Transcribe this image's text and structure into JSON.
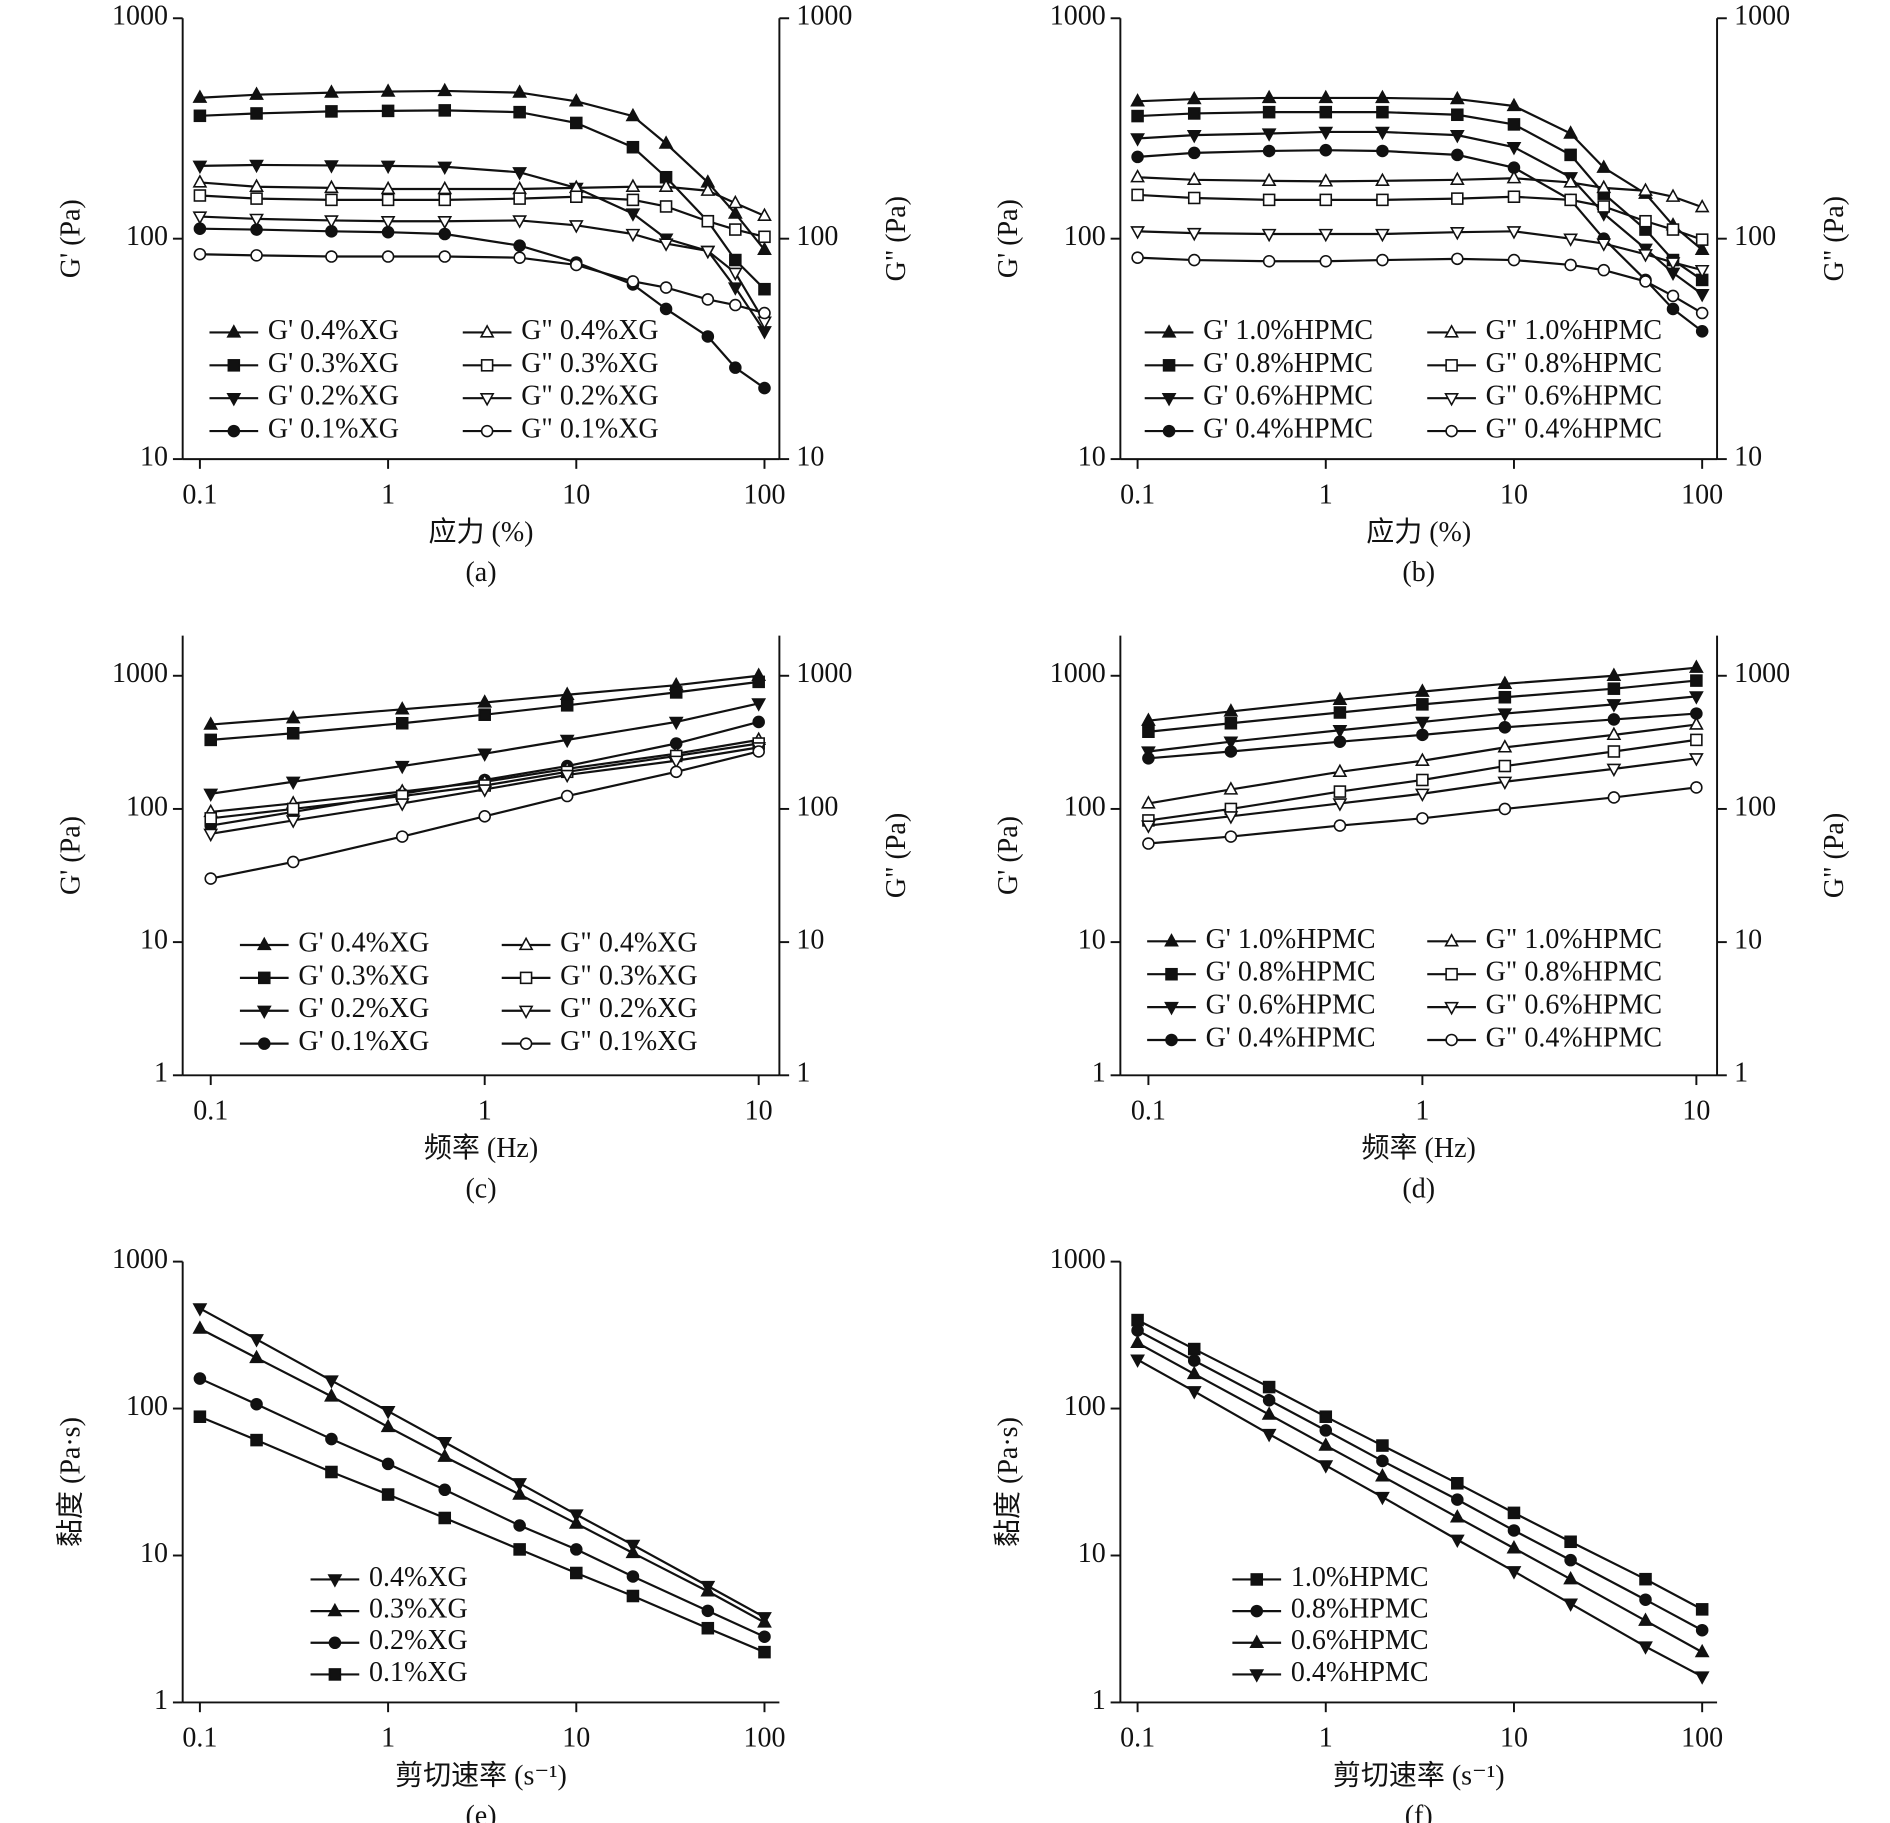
{
  "chart_data": [
    {
      "type": "line",
      "caption": "(a)",
      "x_label": "应力 (%)",
      "y_label": "G' (Pa)",
      "y2_label": "G\" (Pa)",
      "log_x": true,
      "log_y": true,
      "legend": "lower left",
      "legend_columns": 2,
      "xlim": [
        0.081,
        120
      ],
      "ylim": [
        10,
        1000
      ],
      "y2lim": [
        10,
        1000
      ],
      "xticks": [
        0.1,
        1,
        10,
        100
      ],
      "yticks": [
        10,
        100,
        1000
      ],
      "y2ticks": [
        10,
        100,
        1000
      ],
      "x": [
        0.1,
        0.2,
        0.5,
        1,
        2,
        5,
        10,
        20,
        30,
        50,
        70,
        100
      ],
      "series": [
        {
          "name": "G' 0.4%XG",
          "color": "#111111",
          "marker": "triangle-up",
          "filled": true,
          "values": [
            436,
            450,
            460,
            465,
            468,
            460,
            420,
            360,
            270,
            180,
            130,
            89
          ]
        },
        {
          "name": "G' 0.3%XG",
          "color": "#111111",
          "marker": "square",
          "filled": true,
          "values": [
            361,
            370,
            378,
            380,
            382,
            375,
            335,
            260,
            190,
            120,
            80,
            59
          ]
        },
        {
          "name": "G' 0.2%XG",
          "color": "#111111",
          "marker": "triangle-down",
          "filled": true,
          "values": [
            214,
            216,
            215,
            214,
            212,
            200,
            170,
            130,
            100,
            88,
            60,
            38
          ]
        },
        {
          "name": "G' 0.1%XG",
          "color": "#111111",
          "marker": "circle",
          "filled": true,
          "values": [
            111,
            110,
            108,
            107,
            105,
            93,
            78,
            62,
            48,
            36,
            26,
            21
          ]
        },
        {
          "name": "G\" 0.4%XG",
          "color": "#111111",
          "marker": "triangle-up",
          "filled": false,
          "values": [
            180,
            172,
            170,
            168,
            168,
            168,
            170,
            172,
            172,
            165,
            145,
            127
          ]
        },
        {
          "name": "G\" 0.3%XG",
          "color": "#111111",
          "marker": "square",
          "filled": false,
          "values": [
            157,
            152,
            150,
            150,
            150,
            152,
            155,
            150,
            140,
            120,
            110,
            102
          ]
        },
        {
          "name": "G\" 0.2%XG",
          "color": "#111111",
          "marker": "triangle-down",
          "filled": false,
          "values": [
            126,
            123,
            121,
            120,
            120,
            121,
            115,
            105,
            95,
            88,
            70,
            42
          ]
        },
        {
          "name": "G\" 0.1%XG",
          "color": "#111111",
          "marker": "circle",
          "filled": false,
          "values": [
            85,
            84,
            83,
            83,
            83,
            82,
            76,
            64,
            60,
            53,
            50,
            46
          ]
        }
      ]
    },
    {
      "type": "line",
      "caption": "(b)",
      "x_label": "应力 (%)",
      "y_label": "G' (Pa)",
      "y2_label": "G\" (Pa)",
      "log_x": true,
      "log_y": true,
      "legend": "lower left",
      "legend_columns": 2,
      "xlim": [
        0.081,
        120
      ],
      "ylim": [
        10,
        1000
      ],
      "y2lim": [
        10,
        1000
      ],
      "xticks": [
        0.1,
        1,
        10,
        100
      ],
      "yticks": [
        10,
        100,
        1000
      ],
      "y2ticks": [
        10,
        100,
        1000
      ],
      "x": [
        0.1,
        0.2,
        0.5,
        1,
        2,
        5,
        10,
        20,
        30,
        50,
        70,
        100
      ],
      "series": [
        {
          "name": "G' 1.0%HPMC",
          "color": "#111111",
          "marker": "triangle-up",
          "filled": true,
          "values": [
            420,
            430,
            435,
            435,
            435,
            430,
            400,
            300,
            210,
            160,
            115,
            89
          ]
        },
        {
          "name": "G' 0.8%HPMC",
          "color": "#111111",
          "marker": "square",
          "filled": true,
          "values": [
            360,
            370,
            375,
            375,
            375,
            365,
            330,
            240,
            160,
            110,
            80,
            65
          ]
        },
        {
          "name": "G' 0.6%HPMC",
          "color": "#111111",
          "marker": "triangle-down",
          "filled": true,
          "values": [
            285,
            295,
            300,
            305,
            305,
            295,
            260,
            190,
            130,
            90,
            70,
            56
          ]
        },
        {
          "name": "G' 0.4%HPMC",
          "color": "#111111",
          "marker": "circle",
          "filled": true,
          "values": [
            235,
            245,
            250,
            252,
            250,
            240,
            210,
            150,
            100,
            65,
            48,
            38
          ]
        },
        {
          "name": "G\" 1.0%HPMC",
          "color": "#111111",
          "marker": "triangle-up",
          "filled": false,
          "values": [
            190,
            185,
            183,
            182,
            183,
            185,
            188,
            180,
            170,
            165,
            155,
            139
          ]
        },
        {
          "name": "G\" 0.8%HPMC",
          "color": "#111111",
          "marker": "square",
          "filled": false,
          "values": [
            158,
            153,
            150,
            150,
            150,
            152,
            155,
            150,
            140,
            120,
            110,
            99
          ]
        },
        {
          "name": "G\" 0.6%HPMC",
          "color": "#111111",
          "marker": "triangle-down",
          "filled": false,
          "values": [
            108,
            106,
            105,
            105,
            105,
            107,
            108,
            100,
            95,
            85,
            78,
            72
          ]
        },
        {
          "name": "G\" 0.4%HPMC",
          "color": "#111111",
          "marker": "circle",
          "filled": false,
          "values": [
            82,
            80,
            79,
            79,
            80,
            81,
            80,
            76,
            72,
            64,
            55,
            46
          ]
        }
      ]
    },
    {
      "type": "line",
      "caption": "(c)",
      "x_label": "频率 (Hz)",
      "y_label": "G' (Pa)",
      "y2_label": "G\" (Pa)",
      "log_x": true,
      "log_y": true,
      "legend": "lower left",
      "legend_columns": 2,
      "xlim": [
        0.079,
        11.9
      ],
      "ylim": [
        1,
        2000
      ],
      "y2lim": [
        1,
        2000
      ],
      "xticks": [
        0.1,
        1,
        10
      ],
      "yticks": [
        1,
        10,
        100,
        1000
      ],
      "y2ticks": [
        1,
        10,
        100,
        1000
      ],
      "x": [
        0.1,
        0.2,
        0.5,
        1,
        2,
        5,
        10
      ],
      "series": [
        {
          "name": "G' 0.4%XG",
          "color": "#111111",
          "marker": "triangle-up",
          "filled": true,
          "values": [
            430,
            480,
            560,
            630,
            720,
            850,
            1000
          ]
        },
        {
          "name": "G' 0.3%XG",
          "color": "#111111",
          "marker": "square",
          "filled": true,
          "values": [
            330,
            370,
            440,
            510,
            600,
            750,
            900
          ]
        },
        {
          "name": "G' 0.2%XG",
          "color": "#111111",
          "marker": "triangle-down",
          "filled": true,
          "values": [
            130,
            160,
            210,
            260,
            330,
            450,
            620
          ]
        },
        {
          "name": "G' 0.1%XG",
          "color": "#111111",
          "marker": "circle",
          "filled": true,
          "values": [
            75,
            95,
            130,
            165,
            210,
            310,
            450
          ]
        },
        {
          "name": "G\" 0.4%XG",
          "color": "#111111",
          "marker": "triangle-up",
          "filled": false,
          "values": [
            95,
            110,
            135,
            160,
            200,
            260,
            330
          ]
        },
        {
          "name": "G\" 0.3%XG",
          "color": "#111111",
          "marker": "square",
          "filled": false,
          "values": [
            85,
            100,
            125,
            150,
            190,
            250,
            310
          ]
        },
        {
          "name": "G\" 0.2%XG",
          "color": "#111111",
          "marker": "triangle-down",
          "filled": false,
          "values": [
            65,
            82,
            110,
            140,
            180,
            230,
            290
          ]
        },
        {
          "name": "G\" 0.1%XG",
          "color": "#111111",
          "marker": "circle",
          "filled": false,
          "values": [
            30,
            40,
            62,
            88,
            125,
            190,
            270
          ]
        }
      ]
    },
    {
      "type": "line",
      "caption": "(d)",
      "x_label": "频率 (Hz)",
      "y_label": "G' (Pa)",
      "y2_label": "G\" (Pa)",
      "log_x": true,
      "log_y": true,
      "legend": "lower left",
      "legend_columns": 2,
      "xlim": [
        0.079,
        11.9
      ],
      "ylim": [
        1,
        2000
      ],
      "y2lim": [
        1,
        2000
      ],
      "xticks": [
        0.1,
        1,
        10
      ],
      "yticks": [
        1,
        10,
        100,
        1000
      ],
      "y2ticks": [
        1,
        10,
        100,
        1000
      ],
      "x": [
        0.1,
        0.2,
        0.5,
        1,
        2,
        5,
        10
      ],
      "series": [
        {
          "name": "G' 1.0%HPMC",
          "color": "#111111",
          "marker": "triangle-up",
          "filled": true,
          "values": [
            460,
            540,
            660,
            760,
            870,
            1000,
            1150
          ]
        },
        {
          "name": "G' 0.8%HPMC",
          "color": "#111111",
          "marker": "square",
          "filled": true,
          "values": [
            380,
            440,
            530,
            610,
            690,
            800,
            920
          ]
        },
        {
          "name": "G' 0.6%HPMC",
          "color": "#111111",
          "marker": "triangle-down",
          "filled": true,
          "values": [
            270,
            320,
            390,
            450,
            520,
            610,
            700
          ]
        },
        {
          "name": "G' 0.4%HPMC",
          "color": "#111111",
          "marker": "circle",
          "filled": true,
          "values": [
            240,
            270,
            320,
            360,
            410,
            470,
            520
          ]
        },
        {
          "name": "G\" 1.0%HPMC",
          "color": "#111111",
          "marker": "triangle-up",
          "filled": false,
          "values": [
            110,
            140,
            190,
            230,
            290,
            360,
            430
          ]
        },
        {
          "name": "G\" 0.8%HPMC",
          "color": "#111111",
          "marker": "square",
          "filled": false,
          "values": [
            82,
            100,
            135,
            165,
            210,
            270,
            330
          ]
        },
        {
          "name": "G\" 0.6%HPMC",
          "color": "#111111",
          "marker": "triangle-down",
          "filled": false,
          "values": [
            75,
            88,
            110,
            130,
            160,
            200,
            240
          ]
        },
        {
          "name": "G\" 0.4%HPMC",
          "color": "#111111",
          "marker": "circle",
          "filled": false,
          "values": [
            55,
            62,
            75,
            85,
            100,
            122,
            145
          ]
        }
      ]
    },
    {
      "type": "line",
      "caption": "(e)",
      "x_label": "剪切速率 (s⁻¹)",
      "y_label": "黏度 (Pa·s)",
      "log_x": true,
      "log_y": true,
      "legend": "lower left",
      "legend_columns": 1,
      "xlim": [
        0.081,
        120
      ],
      "ylim": [
        1,
        1000
      ],
      "xticks": [
        0.1,
        1,
        10,
        100
      ],
      "yticks": [
        1,
        10,
        100,
        1000
      ],
      "x": [
        0.1,
        0.2,
        0.5,
        1,
        2,
        5,
        10,
        20,
        50,
        100
      ],
      "series": [
        {
          "name": "0.4%XG",
          "color": "#111111",
          "marker": "triangle-down",
          "filled": true,
          "values": [
            480,
            296,
            155,
            96,
            59,
            31,
            19,
            11.8,
            6.2,
            3.8
          ]
        },
        {
          "name": "0.3%XG",
          "color": "#111111",
          "marker": "triangle-up",
          "filled": true,
          "values": [
            350,
            221,
            121,
            75,
            47,
            26,
            16.5,
            10.4,
            5.7,
            3.5
          ]
        },
        {
          "name": "0.2%XG",
          "color": "#111111",
          "marker": "circle",
          "filled": true,
          "values": [
            160,
            107,
            62,
            42,
            28,
            16,
            11,
            7.2,
            4.2,
            2.8
          ]
        },
        {
          "name": "0.1%XG",
          "color": "#111111",
          "marker": "square",
          "filled": true,
          "values": [
            88,
            61,
            37,
            26,
            18,
            11,
            7.6,
            5.3,
            3.2,
            2.2
          ]
        }
      ]
    },
    {
      "type": "line",
      "caption": "(f)",
      "x_label": "剪切速率 (s⁻¹)",
      "y_label": "黏度 (Pa·s)",
      "log_x": true,
      "log_y": true,
      "legend": "lower left",
      "legend_columns": 1,
      "xlim": [
        0.081,
        120
      ],
      "ylim": [
        1,
        1000
      ],
      "xticks": [
        0.1,
        1,
        10,
        100
      ],
      "yticks": [
        1,
        10,
        100,
        1000
      ],
      "x": [
        0.1,
        0.2,
        0.5,
        1,
        2,
        5,
        10,
        20,
        50,
        100
      ],
      "series": [
        {
          "name": "1.0%HPMC",
          "color": "#111111",
          "marker": "square",
          "filled": true,
          "values": [
            400,
            254,
            140,
            88,
            56,
            31,
            19.5,
            12.4,
            6.9,
            4.3
          ]
        },
        {
          "name": "0.8%HPMC",
          "color": "#111111",
          "marker": "circle",
          "filled": true,
          "values": [
            340,
            212,
            114,
            71,
            44,
            24,
            14.8,
            9.3,
            5.0,
            3.1
          ]
        },
        {
          "name": "0.6%HPMC",
          "color": "#111111",
          "marker": "triangle-up",
          "filled": true,
          "values": [
            280,
            172,
            91,
            56,
            34.6,
            18.2,
            11.2,
            6.9,
            3.6,
            2.2
          ]
        },
        {
          "name": "0.4%HPMC",
          "color": "#111111",
          "marker": "triangle-down",
          "filled": true,
          "values": [
            215,
            131,
            67,
            41,
            25,
            12.8,
            7.8,
            4.7,
            2.4,
            1.5
          ]
        }
      ]
    }
  ]
}
